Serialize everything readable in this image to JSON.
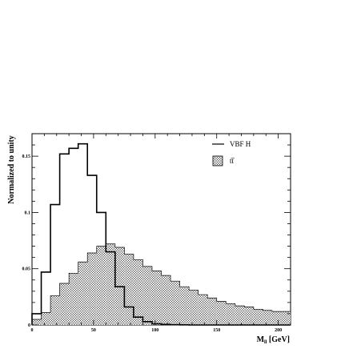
{
  "chart_data": {
    "type": "histogram",
    "title": "",
    "xlabel": "M_ll [GeV]",
    "xlabel_main": "M",
    "xlabel_sub": "ll",
    "xlabel_unit": " [GeV]",
    "ylabel": "Normalized to unity",
    "xlim": [
      0,
      210
    ],
    "ylim": [
      0,
      0.17
    ],
    "bin_width": 7.5,
    "x_ticks": [
      0,
      50,
      100,
      150,
      200
    ],
    "x_tick_labels": [
      "0",
      "50",
      "100",
      "150",
      "200"
    ],
    "y_ticks": [
      0,
      0.05,
      0.1,
      0.15
    ],
    "y_tick_labels": [
      "0",
      "0.05",
      "0.1",
      "0.15"
    ],
    "legend_position": "top-right",
    "series": [
      {
        "name": "VBF H",
        "style": "line",
        "color": "#000000",
        "bin_edges_start": 0,
        "values": [
          0.01,
          0.047,
          0.107,
          0.152,
          0.157,
          0.161,
          0.133,
          0.1,
          0.065,
          0.034,
          0.016,
          0.007,
          0.003,
          0.001,
          0.0005,
          0.0002,
          0.0001,
          0,
          0,
          0,
          0,
          0,
          0,
          0,
          0,
          0,
          0,
          0
        ]
      },
      {
        "name": "tt̅",
        "style": "hatched",
        "color": "#000000",
        "bin_edges_start": 0,
        "values": [
          0.005,
          0.011,
          0.026,
          0.037,
          0.046,
          0.056,
          0.064,
          0.07,
          0.072,
          0.069,
          0.063,
          0.058,
          0.052,
          0.048,
          0.044,
          0.039,
          0.034,
          0.031,
          0.027,
          0.024,
          0.021,
          0.019,
          0.017,
          0.016,
          0.014,
          0.013,
          0.012,
          0.012
        ]
      }
    ]
  }
}
